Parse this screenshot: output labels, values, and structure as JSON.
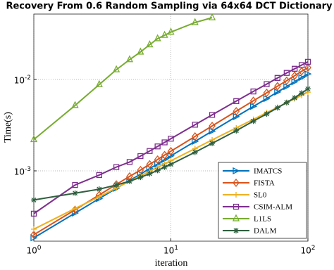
{
  "chart_data": {
    "type": "line",
    "title": "Recovery From 0.6 Random Sampling via 64x64 DCT Dictionary",
    "xlabel": "iteration",
    "ylabel": "Time(s)",
    "x": [
      1,
      2,
      3,
      4,
      5,
      6,
      7,
      8,
      9,
      10,
      15,
      20,
      30,
      40,
      50,
      60,
      70,
      80,
      90,
      100
    ],
    "series": [
      {
        "name": "IMATCS",
        "color": "#0072bd",
        "marker": "triangle-right",
        "values": [
          0.000185,
          0.000345,
          0.000497,
          0.000644,
          0.000785,
          0.00092,
          0.00106,
          0.00119,
          0.00133,
          0.00146,
          0.0021,
          0.00272,
          0.00392,
          0.00507,
          0.00618,
          0.00729,
          0.00836,
          0.00944,
          0.0105,
          0.0115
        ]
      },
      {
        "name": "FISTA",
        "color": "#d95319",
        "marker": "diamond",
        "values": [
          0.0002,
          0.000375,
          0.000545,
          0.00071,
          0.00087,
          0.00102,
          0.00118,
          0.00133,
          0.00149,
          0.00164,
          0.00238,
          0.0031,
          0.0045,
          0.00585,
          0.00715,
          0.00845,
          0.0097,
          0.011,
          0.0123,
          0.0135
        ]
      },
      {
        "name": "SL0",
        "color": "#edb120",
        "marker": "plus",
        "values": [
          0.00023,
          0.000387,
          0.00052,
          0.00065,
          0.00077,
          0.00088,
          0.00099,
          0.00109,
          0.0012,
          0.00129,
          0.00175,
          0.00218,
          0.00295,
          0.00366,
          0.00433,
          0.00496,
          0.00557,
          0.00615,
          0.00671,
          0.00727
        ]
      },
      {
        "name": "CSIM-ALM",
        "color": "#7e2f8e",
        "marker": "square",
        "values": [
          0.00034,
          0.0007,
          0.0009,
          0.0011,
          0.00125,
          0.00145,
          0.00165,
          0.00185,
          0.00205,
          0.00225,
          0.0032,
          0.0041,
          0.0058,
          0.0074,
          0.0089,
          0.0104,
          0.0118,
          0.0131,
          0.0144,
          0.0156
        ]
      },
      {
        "name": "L1LS",
        "color": "#77ac30",
        "marker": "triangle-up",
        "values": [
          0.0022,
          0.0052,
          0.0088,
          0.0128,
          0.0165,
          0.02,
          0.024,
          0.028,
          0.0305,
          0.033,
          0.042,
          0.0475,
          null,
          null,
          null,
          null,
          null,
          null,
          null,
          null
        ]
      },
      {
        "name": "DALM",
        "color": "#2f5f3f",
        "marker": "asterisk",
        "values": [
          0.00048,
          0.00057,
          0.00063,
          0.0007,
          0.00077,
          0.00085,
          0.00093,
          0.00101,
          0.0011,
          0.00118,
          0.0016,
          0.002,
          0.00275,
          0.0035,
          0.0042,
          0.0049,
          0.0056,
          0.0063,
          0.0071,
          0.0079
        ]
      }
    ],
    "xscale": "log",
    "yscale": "log",
    "xlim": [
      1,
      100
    ],
    "ylim": [
      0.00017,
      0.052
    ],
    "xticks": [
      {
        "value": 1,
        "label": "10^0"
      },
      {
        "value": 10,
        "label": "10^1"
      },
      {
        "value": 100,
        "label": "10^2"
      }
    ],
    "yticks": [
      {
        "value": 0.001,
        "label": "10^-3"
      },
      {
        "value": 0.01,
        "label": "10^-2"
      }
    ],
    "grid": true,
    "legend": "lower right"
  }
}
